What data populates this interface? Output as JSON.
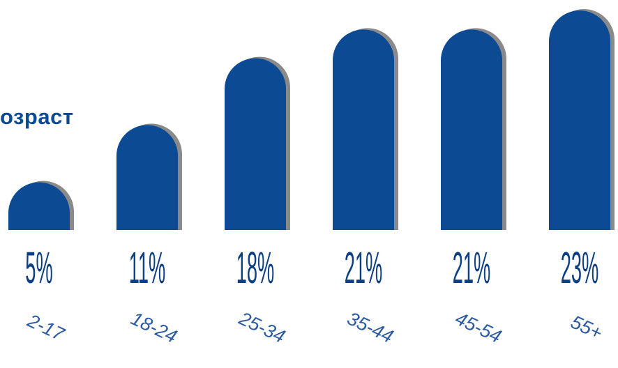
{
  "chart_data": {
    "type": "bar",
    "title": "озраст",
    "categories": [
      "2-17",
      "18-24",
      "25-34",
      "35-44",
      "45-54",
      "55+"
    ],
    "values": [
      5,
      11,
      18,
      21,
      21,
      23
    ],
    "value_labels": [
      "5%",
      "11%",
      "18%",
      "21%",
      "21%",
      "23%"
    ],
    "ylim": [
      0,
      23
    ],
    "colors": {
      "bar": "#0d4a94",
      "bar_shadow": "#8a8a8a",
      "value_label": "#0d3f85",
      "category_label": "#2b5aa3"
    },
    "grid": false,
    "legend": "none"
  }
}
